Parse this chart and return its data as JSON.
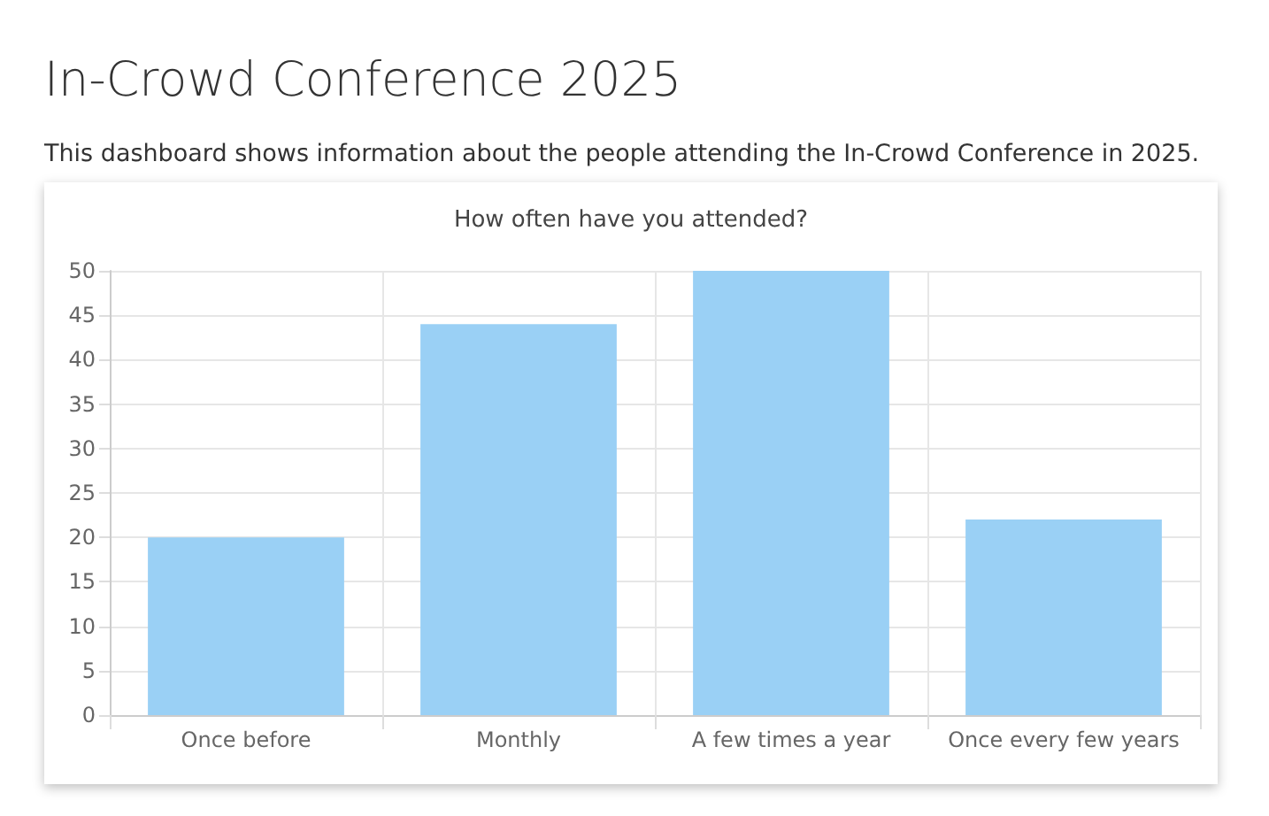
{
  "chart_data": {
    "type": "bar",
    "title": "In-Crowd Conference 2025",
    "subtitle": "This dashboard shows information about the people attending the In-Crowd Conference in 2025.",
    "annotations": [
      "How often have you attended?"
    ],
    "categories": [
      "Once before",
      "Monthly",
      "A few times a year",
      "Once every few years"
    ],
    "values": [
      20,
      44,
      50,
      22
    ],
    "color": "#9ad0f5",
    "ylim": [
      0,
      50
    ],
    "yticks": [
      0,
      5,
      10,
      15,
      20,
      25,
      30,
      35,
      40,
      45,
      50
    ],
    "grid": true
  }
}
